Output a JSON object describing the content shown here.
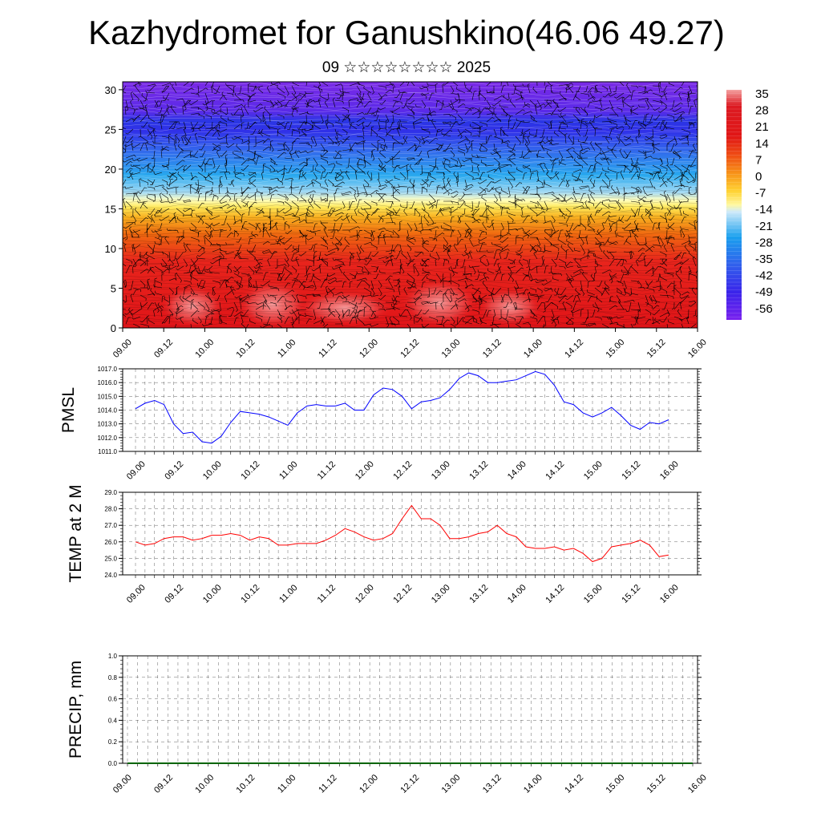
{
  "title": "Kazhydromet for Ganushkino(46.06 49.27)",
  "subtitle": "09 ☆☆☆☆☆☆☆☆ 2025",
  "chart_data": [
    {
      "type": "heatmap",
      "description": "time-height cross section with wind barbs and contours",
      "x_tick_labels": [
        "09.00",
        "09.12",
        "10.00",
        "10.12",
        "11.00",
        "11.12",
        "12.00",
        "12.12",
        "13.00",
        "13.12",
        "14.00",
        "14.12",
        "15.00",
        "15.12",
        "16.00"
      ],
      "y_tick_labels": [
        "0",
        "5",
        "10",
        "15",
        "20",
        "25",
        "30"
      ],
      "ylim": [
        0,
        31
      ],
      "colorbar_labels": [
        "35",
        "28",
        "21",
        "14",
        "7",
        "0",
        "-7",
        "-14",
        "-21",
        "-28",
        "-35",
        "-42",
        "-49",
        "-56"
      ],
      "colors": {
        "warm": "#e2141c",
        "mid_warm": "#f06a10",
        "yellow": "#ffe95a",
        "cyan": "#22a8ee",
        "blue": "#2a40ec",
        "violet": "#7a2ae6"
      }
    },
    {
      "type": "line",
      "ylabel": "PMSL",
      "ylim": [
        1011,
        1017
      ],
      "y_tick_labels": [
        "1011.0",
        "1012.0",
        "1013.0",
        "1014.0",
        "1015.0",
        "1016.0",
        "1017.0"
      ],
      "x_tick_labels": [
        "09.00",
        "09.12",
        "10.00",
        "10.12",
        "11.00",
        "11.12",
        "12.00",
        "12.12",
        "13.00",
        "13.12",
        "14.00",
        "14.12",
        "15.00",
        "15.12",
        "16.00"
      ],
      "line_color": "#0000ff",
      "series": [
        {
          "values": [
            1014.1,
            1014.5,
            1014.7,
            1014.4,
            1013.0,
            1012.3,
            1012.4,
            1011.7,
            1011.6,
            1012.1,
            1013.1,
            1013.9,
            1013.8,
            1013.7,
            1013.5,
            1013.2,
            1012.9,
            1013.8,
            1014.3,
            1014.4,
            1014.3,
            1014.3,
            1014.5,
            1014.0,
            1014.0,
            1015.1,
            1015.6,
            1015.5,
            1015.0,
            1014.1,
            1014.6,
            1014.7,
            1014.9,
            1015.5,
            1016.3,
            1016.7,
            1016.5,
            1016.0,
            1016.0,
            1016.1,
            1016.2,
            1016.5,
            1016.8,
            1016.6,
            1015.8,
            1014.6,
            1014.4,
            1013.8,
            1013.5,
            1013.8,
            1014.2,
            1013.6,
            1012.9,
            1012.6,
            1013.1,
            1013.0,
            1013.3
          ]
        }
      ]
    },
    {
      "type": "line",
      "ylabel": "TEMP at 2 M",
      "ylim": [
        24,
        29
      ],
      "y_tick_labels": [
        "24.0",
        "25.0",
        "26.0",
        "27.0",
        "28.0",
        "29.0"
      ],
      "x_tick_labels": [
        "09.00",
        "09.12",
        "10.00",
        "10.12",
        "11.00",
        "11.12",
        "12.00",
        "12.12",
        "13.00",
        "13.12",
        "14.00",
        "14.12",
        "15.00",
        "15.12",
        "16.00"
      ],
      "line_color": "#ff0000",
      "series": [
        {
          "values": [
            26.0,
            25.8,
            25.9,
            26.2,
            26.3,
            26.3,
            26.1,
            26.2,
            26.4,
            26.4,
            26.5,
            26.4,
            26.1,
            26.3,
            26.2,
            25.8,
            25.8,
            25.9,
            25.9,
            25.9,
            26.1,
            26.4,
            26.8,
            26.6,
            26.3,
            26.1,
            26.2,
            26.5,
            27.4,
            28.2,
            27.4,
            27.4,
            27.0,
            26.2,
            26.2,
            26.3,
            26.5,
            26.6,
            27.0,
            26.5,
            26.3,
            25.7,
            25.6,
            25.6,
            25.7,
            25.5,
            25.6,
            25.3,
            24.8,
            25.0,
            25.7,
            25.8,
            25.9,
            26.1,
            25.8,
            25.1,
            25.2
          ]
        }
      ]
    },
    {
      "type": "line",
      "ylabel": "PRECIP, mm",
      "ylim": [
        0,
        1
      ],
      "y_tick_labels": [
        "0.0",
        "0.2",
        "0.4",
        "0.6",
        "0.8",
        "1.0"
      ],
      "x_tick_labels": [
        "09.00",
        "09.12",
        "10.00",
        "10.12",
        "11.00",
        "11.12",
        "12.00",
        "12.12",
        "13.00",
        "13.12",
        "14.00",
        "14.12",
        "15.00",
        "15.12",
        "16.00"
      ],
      "line_color": "#006400",
      "series": [
        {
          "values": [
            0,
            0,
            0,
            0,
            0,
            0,
            0,
            0,
            0,
            0,
            0,
            0,
            0,
            0,
            0,
            0,
            0,
            0,
            0,
            0,
            0,
            0,
            0,
            0,
            0,
            0,
            0,
            0,
            0,
            0,
            0,
            0,
            0,
            0,
            0,
            0,
            0,
            0,
            0,
            0,
            0,
            0,
            0,
            0,
            0,
            0,
            0,
            0,
            0,
            0,
            0,
            0,
            0,
            0,
            0,
            0,
            0
          ]
        }
      ]
    }
  ]
}
